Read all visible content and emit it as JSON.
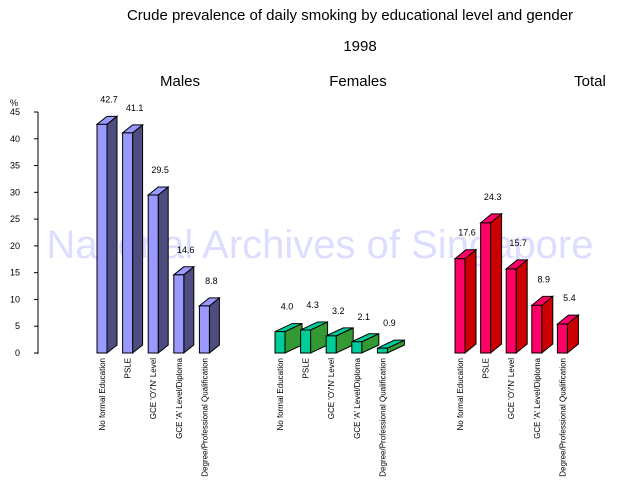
{
  "chart_data": {
    "type": "bar",
    "title": "Crude prevalence of daily smoking by educational level and gender",
    "subtitle": "1998",
    "ylabel": "%",
    "ylim": [
      0,
      45
    ],
    "yticks": [
      0,
      5,
      10,
      15,
      20,
      25,
      30,
      35,
      40,
      45
    ],
    "grid": false,
    "watermark": "National Archives of Singapore",
    "categories": [
      "No formal Education",
      "PSLE",
      "GCE 'O'/'N' Level",
      "GCE 'A' Level/Diploma",
      "Degree/Professional Qualification"
    ],
    "series": [
      {
        "name": "Males",
        "values": [
          42.7,
          41.1,
          29.5,
          14.6,
          8.8
        ],
        "labels": [
          "42.7",
          "41.1",
          "29.5",
          "14.6",
          "8.8"
        ],
        "front": "#9999ff",
        "side": "#4d4d80"
      },
      {
        "name": "Females",
        "values": [
          4.0,
          4.3,
          3.2,
          2.1,
          0.9
        ],
        "labels": [
          "4.0",
          "4.3",
          "3.2",
          "2.1",
          "0.9"
        ],
        "front": "#00cc99",
        "side": "#339933"
      },
      {
        "name": "Total",
        "values": [
          17.6,
          24.3,
          15.7,
          8.9,
          5.4
        ],
        "labels": [
          "17.6",
          "24.3",
          "15.7",
          "8.9",
          "5.4"
        ],
        "front": "#ff0066",
        "side": "#cc0000"
      }
    ]
  }
}
